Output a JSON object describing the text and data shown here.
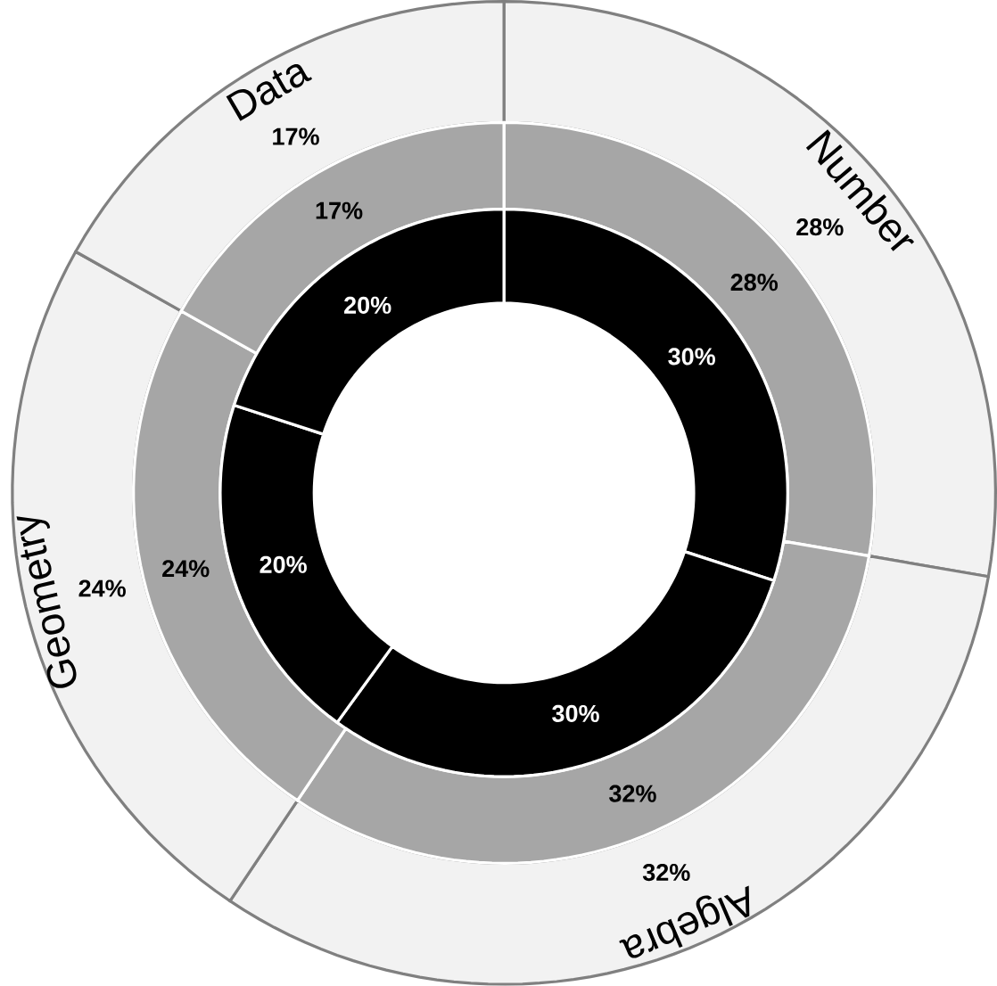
{
  "chart_data": {
    "type": "donut",
    "categories": [
      "Number",
      "Algebra",
      "Geometry",
      "Data"
    ],
    "series": [
      {
        "color": "#f2f2f2",
        "values": [
          28,
          32,
          24,
          17
        ],
        "value_labels": [
          "28%",
          "32%",
          "24%",
          "17%"
        ]
      },
      {
        "color": "#a6a6a6",
        "values": [
          28,
          32,
          24,
          17
        ],
        "value_labels": [
          "28%",
          "32%",
          "24%",
          "17%"
        ]
      },
      {
        "color": "#000000",
        "values": [
          30,
          30,
          20,
          20
        ],
        "value_labels": [
          "30%",
          "30%",
          "20%",
          "20%"
        ]
      }
    ]
  }
}
